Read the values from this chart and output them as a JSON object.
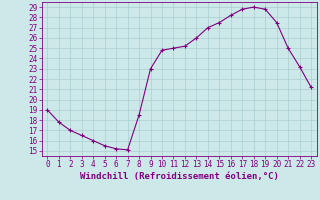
{
  "x": [
    0,
    1,
    2,
    3,
    4,
    5,
    6,
    7,
    8,
    9,
    10,
    11,
    12,
    13,
    14,
    15,
    16,
    17,
    18,
    19,
    20,
    21,
    22,
    23
  ],
  "y": [
    19.0,
    17.8,
    17.0,
    16.5,
    16.0,
    15.5,
    15.2,
    15.1,
    18.5,
    23.0,
    24.8,
    25.0,
    25.2,
    26.0,
    27.0,
    27.5,
    28.2,
    28.8,
    29.0,
    28.8,
    27.5,
    25.0,
    23.2,
    21.2
  ],
  "line_color": "#800080",
  "marker": "+",
  "bg_color": "#cce8e8",
  "grid_color": "#aacfcf",
  "xlabel": "Windchill (Refroidissement éolien,°C)",
  "ylabel_ticks": [
    15,
    16,
    17,
    18,
    19,
    20,
    21,
    22,
    23,
    24,
    25,
    26,
    27,
    28,
    29
  ],
  "xlim": [
    -0.5,
    23.5
  ],
  "ylim": [
    14.5,
    29.5
  ],
  "xlabel_fontsize": 6.5,
  "tick_fontsize": 5.5
}
